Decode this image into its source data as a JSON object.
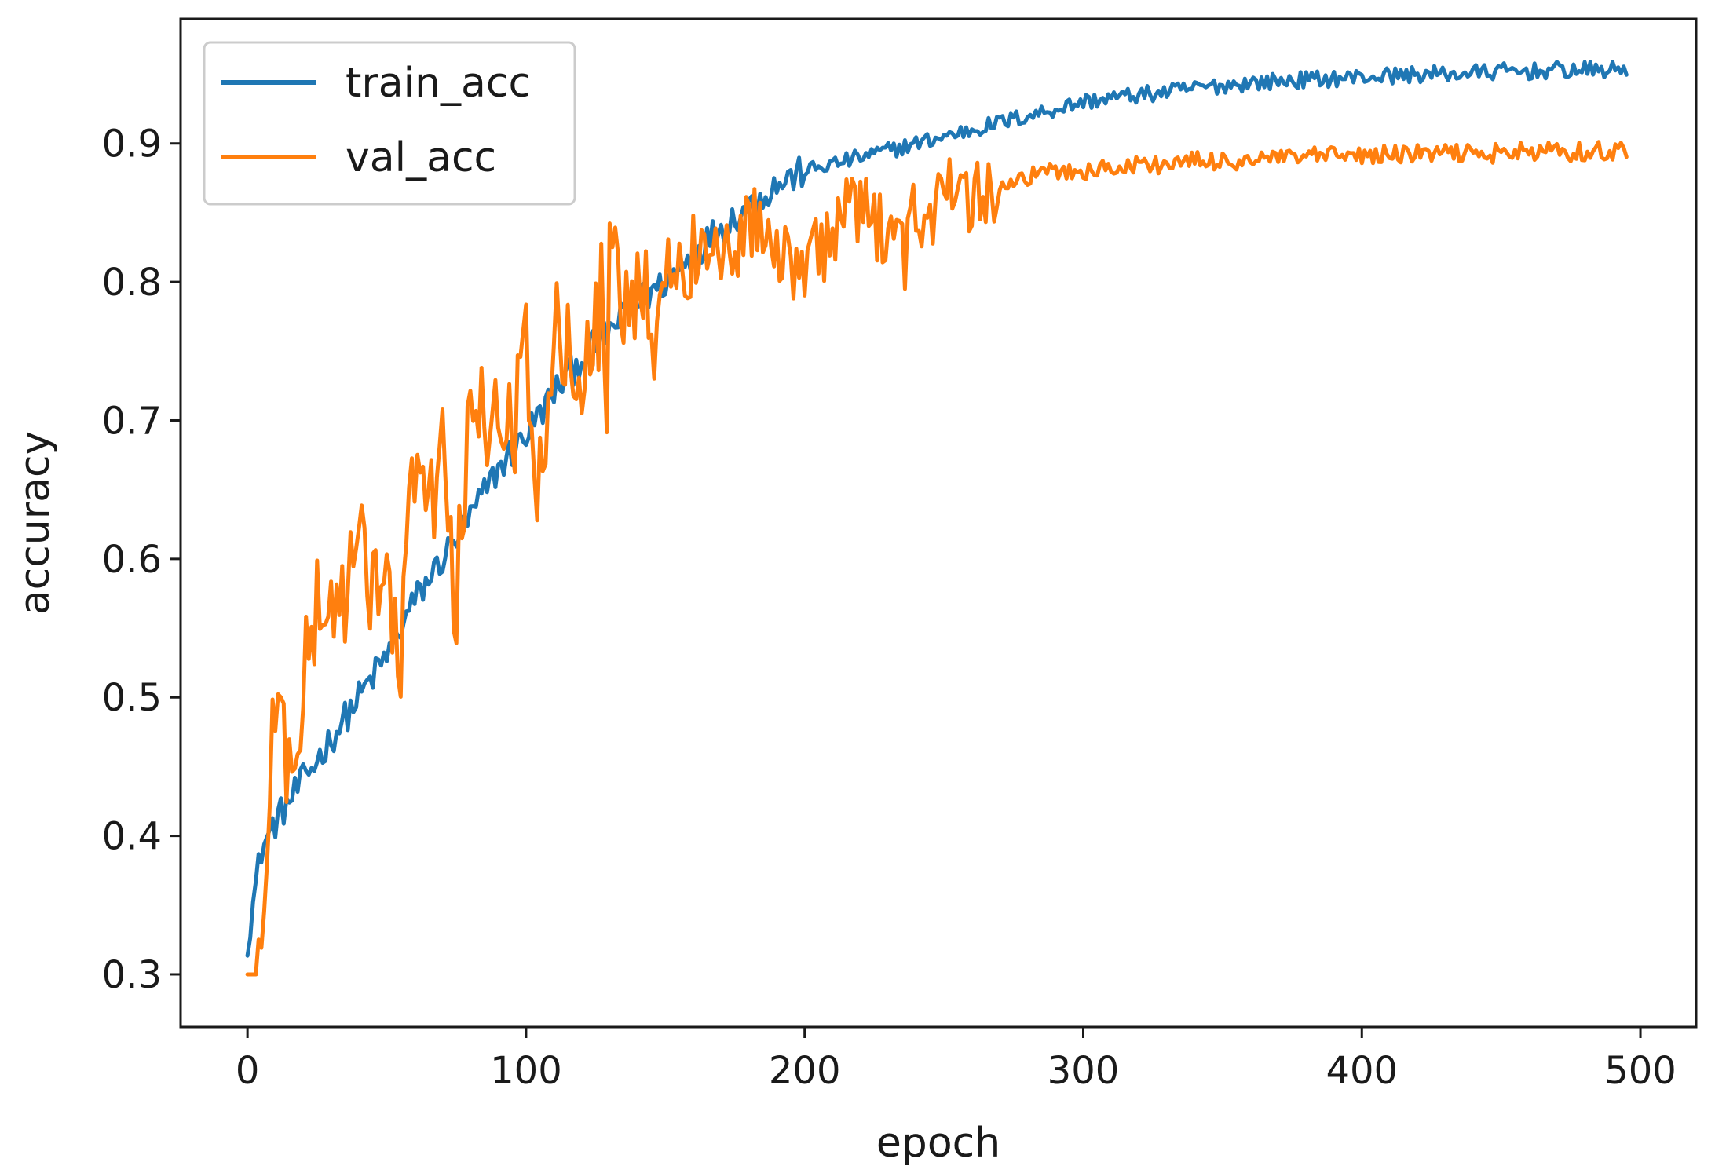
{
  "chart_data": {
    "type": "line",
    "title": "",
    "xlabel": "epoch",
    "ylabel": "accuracy",
    "xlim": [
      -24,
      520
    ],
    "ylim": [
      0.262,
      0.99
    ],
    "xticks": [
      0,
      100,
      200,
      300,
      400,
      500
    ],
    "yticks": [
      0.3,
      0.4,
      0.5,
      0.6,
      0.7,
      0.8,
      0.9
    ],
    "xtick_labels": [
      "0",
      "100",
      "200",
      "300",
      "400",
      "500"
    ],
    "ytick_labels": [
      "0.3",
      "0.4",
      "0.5",
      "0.6",
      "0.7",
      "0.8",
      "0.9"
    ],
    "grid": false,
    "legend_position": "top-left",
    "series": [
      {
        "name": "train_acc",
        "color": "#1f77b4",
        "x": [
          0,
          5,
          10,
          20,
          30,
          40,
          50,
          60,
          70,
          80,
          90,
          100,
          110,
          120,
          130,
          140,
          150,
          160,
          170,
          180,
          190,
          200,
          210,
          220,
          230,
          240,
          250,
          260,
          270,
          280,
          290,
          300,
          310,
          320,
          330,
          340,
          350,
          360,
          370,
          380,
          390,
          400,
          410,
          420,
          430,
          440,
          450,
          460,
          470,
          480,
          490,
          495
        ],
        "y": [
          0.325,
          0.39,
          0.41,
          0.44,
          0.47,
          0.5,
          0.53,
          0.57,
          0.6,
          0.63,
          0.665,
          0.69,
          0.72,
          0.745,
          0.765,
          0.785,
          0.8,
          0.82,
          0.84,
          0.855,
          0.87,
          0.88,
          0.885,
          0.89,
          0.895,
          0.9,
          0.905,
          0.91,
          0.915,
          0.92,
          0.925,
          0.93,
          0.933,
          0.935,
          0.937,
          0.94,
          0.942,
          0.944,
          0.945,
          0.946,
          0.947,
          0.948,
          0.949,
          0.95,
          0.95,
          0.951,
          0.952,
          0.952,
          0.953,
          0.953,
          0.953,
          0.954
        ]
      },
      {
        "name": "val_acc",
        "color": "#ff7f0e",
        "x": [
          0,
          3,
          5,
          8,
          10,
          15,
          20,
          25,
          30,
          40,
          50,
          55,
          60,
          65,
          70,
          75,
          80,
          85,
          90,
          95,
          100,
          105,
          110,
          120,
          130,
          140,
          150,
          160,
          170,
          180,
          190,
          200,
          210,
          220,
          230,
          240,
          250,
          260,
          270,
          280,
          290,
          300,
          310,
          320,
          330,
          340,
          350,
          360,
          370,
          380,
          390,
          400,
          410,
          420,
          430,
          440,
          450,
          460,
          470,
          480,
          490,
          495
        ],
        "y": [
          0.3,
          0.3,
          0.3,
          0.45,
          0.5,
          0.45,
          0.5,
          0.57,
          0.56,
          0.6,
          0.58,
          0.52,
          0.68,
          0.62,
          0.69,
          0.56,
          0.73,
          0.7,
          0.72,
          0.68,
          0.76,
          0.65,
          0.78,
          0.75,
          0.8,
          0.79,
          0.8,
          0.82,
          0.82,
          0.84,
          0.84,
          0.8,
          0.84,
          0.85,
          0.84,
          0.85,
          0.86,
          0.86,
          0.87,
          0.875,
          0.88,
          0.88,
          0.882,
          0.885,
          0.885,
          0.887,
          0.887,
          0.888,
          0.889,
          0.89,
          0.891,
          0.891,
          0.892,
          0.892,
          0.893,
          0.893,
          0.893,
          0.894,
          0.894,
          0.894,
          0.895,
          0.895
        ]
      }
    ]
  }
}
